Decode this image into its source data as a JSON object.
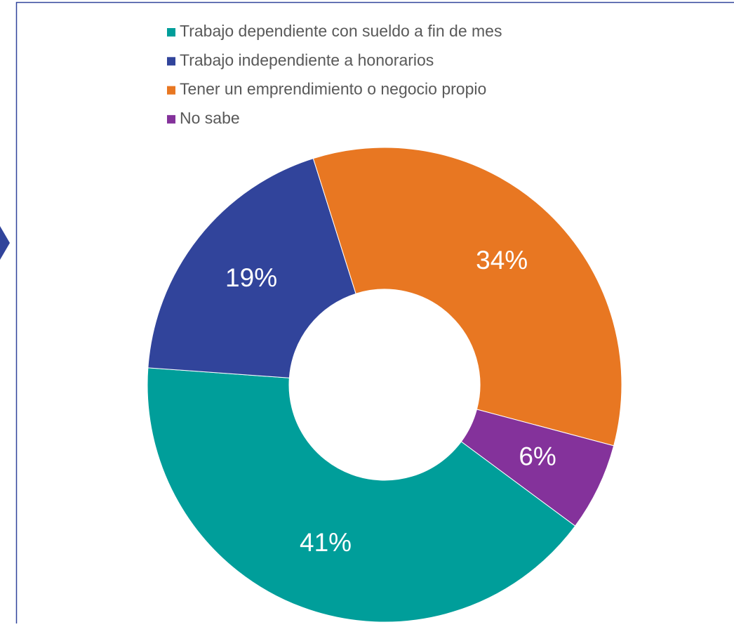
{
  "chart_data": {
    "type": "donut",
    "categories": [
      "Trabajo dependiente con sueldo a fin de mes",
      "Trabajo independiente a honorarios",
      "Tener un emprendimiento o negocio propio",
      "No sabe"
    ],
    "values": [
      41,
      19,
      34,
      6
    ],
    "value_labels": [
      "41%",
      "19%",
      "34%",
      "6%"
    ],
    "colors": [
      "#009e9a",
      "#31449b",
      "#e87722",
      "#84329b"
    ],
    "legend": "top"
  }
}
